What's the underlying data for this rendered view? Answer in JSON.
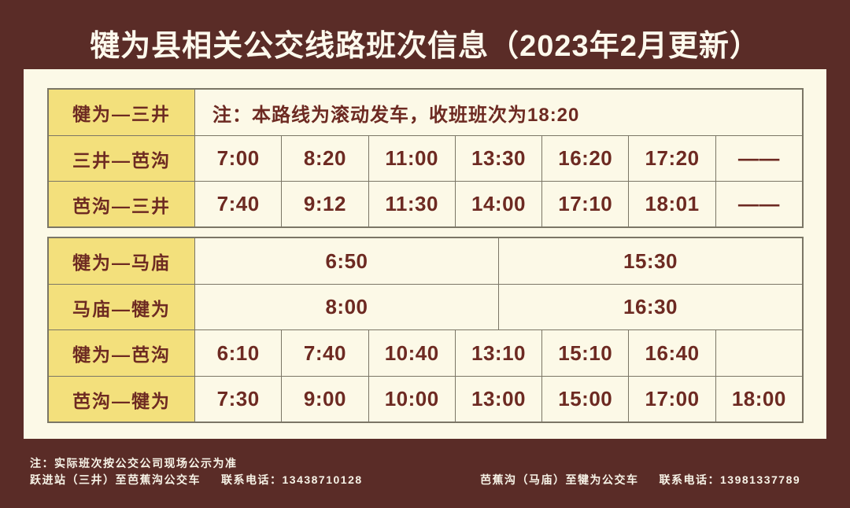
{
  "title": "犍为县相关公交线路班次信息（2023年2月更新）",
  "colors": {
    "bg": "#5a2c27",
    "panel": "#fcf9e7",
    "label_bg": "#f3e07c",
    "cell_text": "#6d2a22",
    "border": "#7b7666",
    "title_text": "#fdf9ed",
    "footer_text": "#f7f3e7"
  },
  "tables": [
    {
      "rows": [
        {
          "label": "犍为—三井",
          "note": "注：本路线为滚动发车，收班班次为18:20"
        },
        {
          "label": "三井—芭沟",
          "times": [
            "7:00",
            "8:20",
            "11:00",
            "13:30",
            "16:20",
            "17:20",
            "——"
          ]
        },
        {
          "label": "芭沟—三井",
          "times": [
            "7:40",
            "9:12",
            "11:30",
            "14:00",
            "17:10",
            "18:01",
            "——"
          ]
        }
      ]
    },
    {
      "rows": [
        {
          "label": "犍为—马庙",
          "times": [
            "6:50",
            "15:30"
          ]
        },
        {
          "label": "马庙—犍为",
          "times": [
            "8:00",
            "16:30"
          ]
        },
        {
          "label": "犍为—芭沟",
          "times": [
            "6:10",
            "7:40",
            "10:40",
            "13:10",
            "15:10",
            "16:40",
            ""
          ]
        },
        {
          "label": "芭沟—犍为",
          "times": [
            "7:30",
            "9:00",
            "10:00",
            "13:00",
            "15:00",
            "17:00",
            "18:00"
          ]
        }
      ]
    }
  ],
  "footer": {
    "note": "注：实际班次按公交公司现场公示为准",
    "left_route": "跃进站（三井）至芭蕉沟公交车",
    "left_contact": "联系电话：13438710128",
    "right_route": "芭蕉沟（马庙）至犍为公交车",
    "right_contact": "联系电话：13981337789"
  }
}
